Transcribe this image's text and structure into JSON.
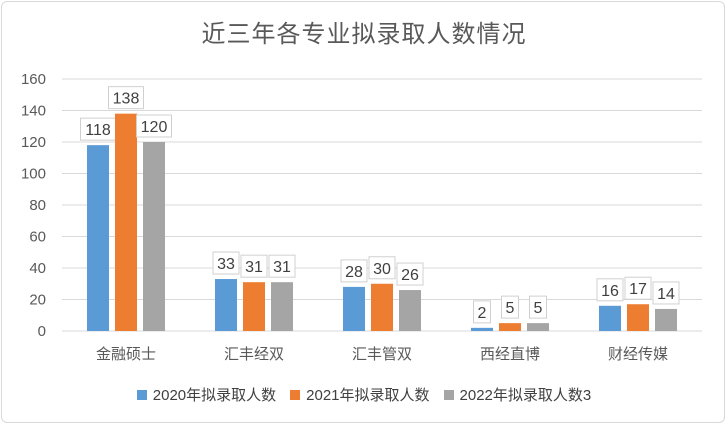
{
  "chart_data": {
    "type": "bar",
    "title": "近三年各专业拟录取人数情况",
    "categories": [
      "金融硕士",
      "汇丰经双",
      "汇丰管双",
      "西经直博",
      "财经传媒"
    ],
    "series": [
      {
        "name": "2020年拟录取人数",
        "values": [
          118,
          33,
          28,
          2,
          16
        ],
        "color": "#5B9BD5"
      },
      {
        "name": "2021年拟录取人数",
        "values": [
          138,
          31,
          30,
          5,
          17
        ],
        "color": "#ED7D31"
      },
      {
        "name": "2022年拟录取人数3",
        "values": [
          120,
          31,
          26,
          5,
          14
        ],
        "color": "#A5A5A5"
      }
    ],
    "ylim": [
      0,
      160
    ],
    "yticks": [
      0,
      20,
      40,
      60,
      80,
      100,
      120,
      140,
      160
    ],
    "grid": true,
    "legend_position": "bottom"
  }
}
